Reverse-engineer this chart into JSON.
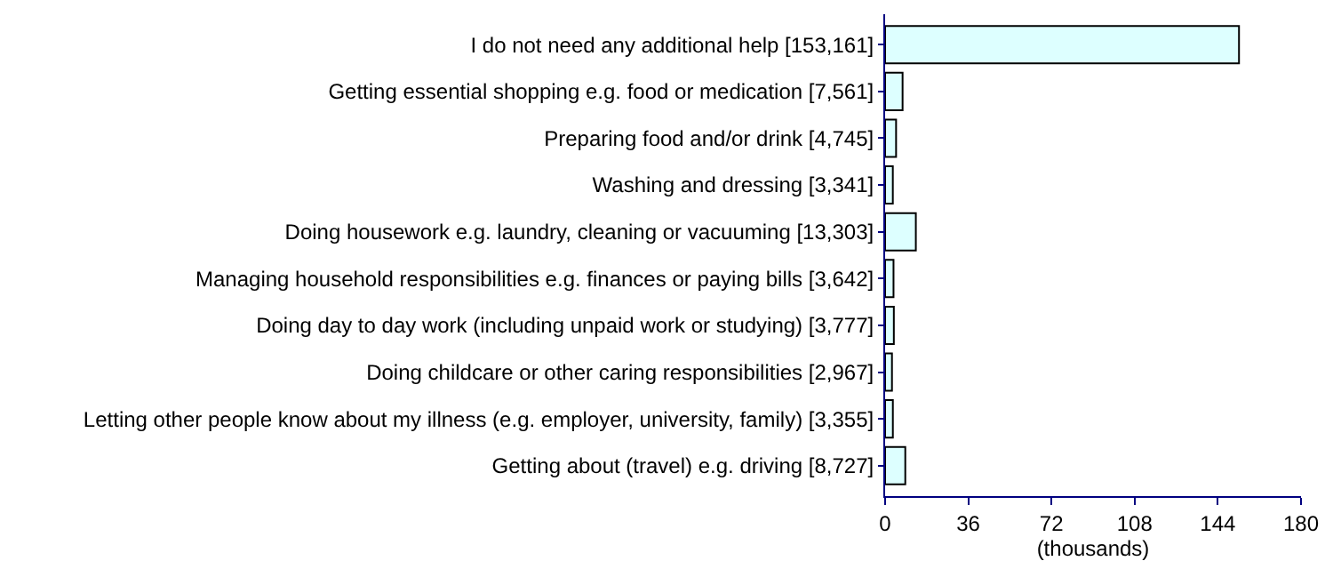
{
  "chart_data": {
    "type": "bar",
    "orientation": "horizontal",
    "xlabel": "(thousands)",
    "categories": [
      "I do not need any additional help [153,161]",
      "Getting essential shopping e.g. food or medication [7,561]",
      "Preparing food and/or drink [4,745]",
      "Washing and dressing [3,341]",
      "Doing housework e.g. laundry, cleaning or vacuuming [13,303]",
      "Managing household responsibilities e.g. finances or paying bills [3,642]",
      "Doing day to day work (including unpaid work or studying) [3,777]",
      "Doing childcare or other caring responsibilities [2,967]",
      "Letting other people know about my illness (e.g. employer, university, family) [3,355]",
      "Getting about (travel) e.g. driving [8,727]"
    ],
    "values": [
      153.161,
      7.561,
      4.745,
      3.341,
      13.303,
      3.642,
      3.777,
      2.967,
      3.355,
      8.727
    ],
    "color": "#ddffff",
    "xlim": [
      0,
      180
    ],
    "xticks": [
      0,
      36,
      72,
      108,
      144,
      180
    ]
  }
}
